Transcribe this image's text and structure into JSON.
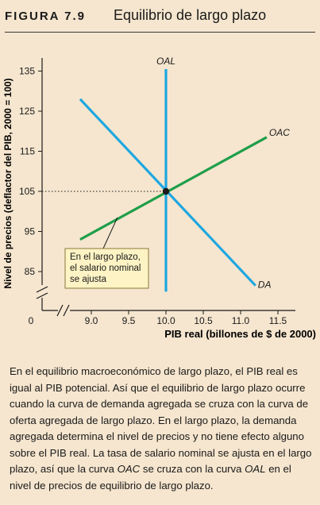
{
  "header": {
    "figure_label": "FIGURA 7.9",
    "title": "Equilibrio de largo plazo"
  },
  "chart_data": {
    "type": "line",
    "ylabel": "Nivel de precios (deflactor del PIB, 2000 = 100)",
    "xlabel": "PIB real (billones de $ de 2000)",
    "x_ticks": [
      "9.0",
      "9.5",
      "10.0",
      "10.5",
      "11.0",
      "11.5"
    ],
    "y_ticks": [
      "85",
      "95",
      "105",
      "115",
      "125",
      "135"
    ],
    "origin_label": "0",
    "xlim": [
      8.8,
      11.6
    ],
    "ylim": [
      80,
      140
    ],
    "axis_breaks": true,
    "grid": false,
    "series": [
      {
        "name": "OAL",
        "color": "#1ea7e1",
        "x": [
          10.0,
          10.0
        ],
        "y": [
          80,
          135.5
        ]
      },
      {
        "name": "OAC",
        "color": "#1f9e4a",
        "x": [
          8.85,
          11.35
        ],
        "y": [
          93,
          118.5
        ]
      },
      {
        "name": "DA",
        "color": "#1ea7e1",
        "x": [
          8.85,
          11.2
        ],
        "y": [
          128,
          81.5
        ]
      }
    ],
    "equilibrium": {
      "x": 10.0,
      "y": 105
    },
    "annotation": {
      "lines": [
        "En el largo plazo,",
        "el salario nominal",
        "se ajusta"
      ],
      "target": {
        "x": 9.35,
        "y": 98.5
      }
    }
  },
  "caption": "En el equilibrio macroeconómico de largo plazo, el PIB real es igual al PIB potencial. Así que el equilibrio de largo plazo ocurre cuando la curva de demanda agregada se cruza con la curva de oferta agregada de largo plazo. En el largo plazo, la demanda agregada determina el nivel de precios y no tiene efecto alguno sobre el PIB real. La tasa de salario nominal se ajusta en el largo plazo, así que la curva OAC se cruza con la curva OAL en el nivel de precios de equilibrio de largo plazo.",
  "caption_italic_terms": [
    "OAC",
    "OAL"
  ]
}
